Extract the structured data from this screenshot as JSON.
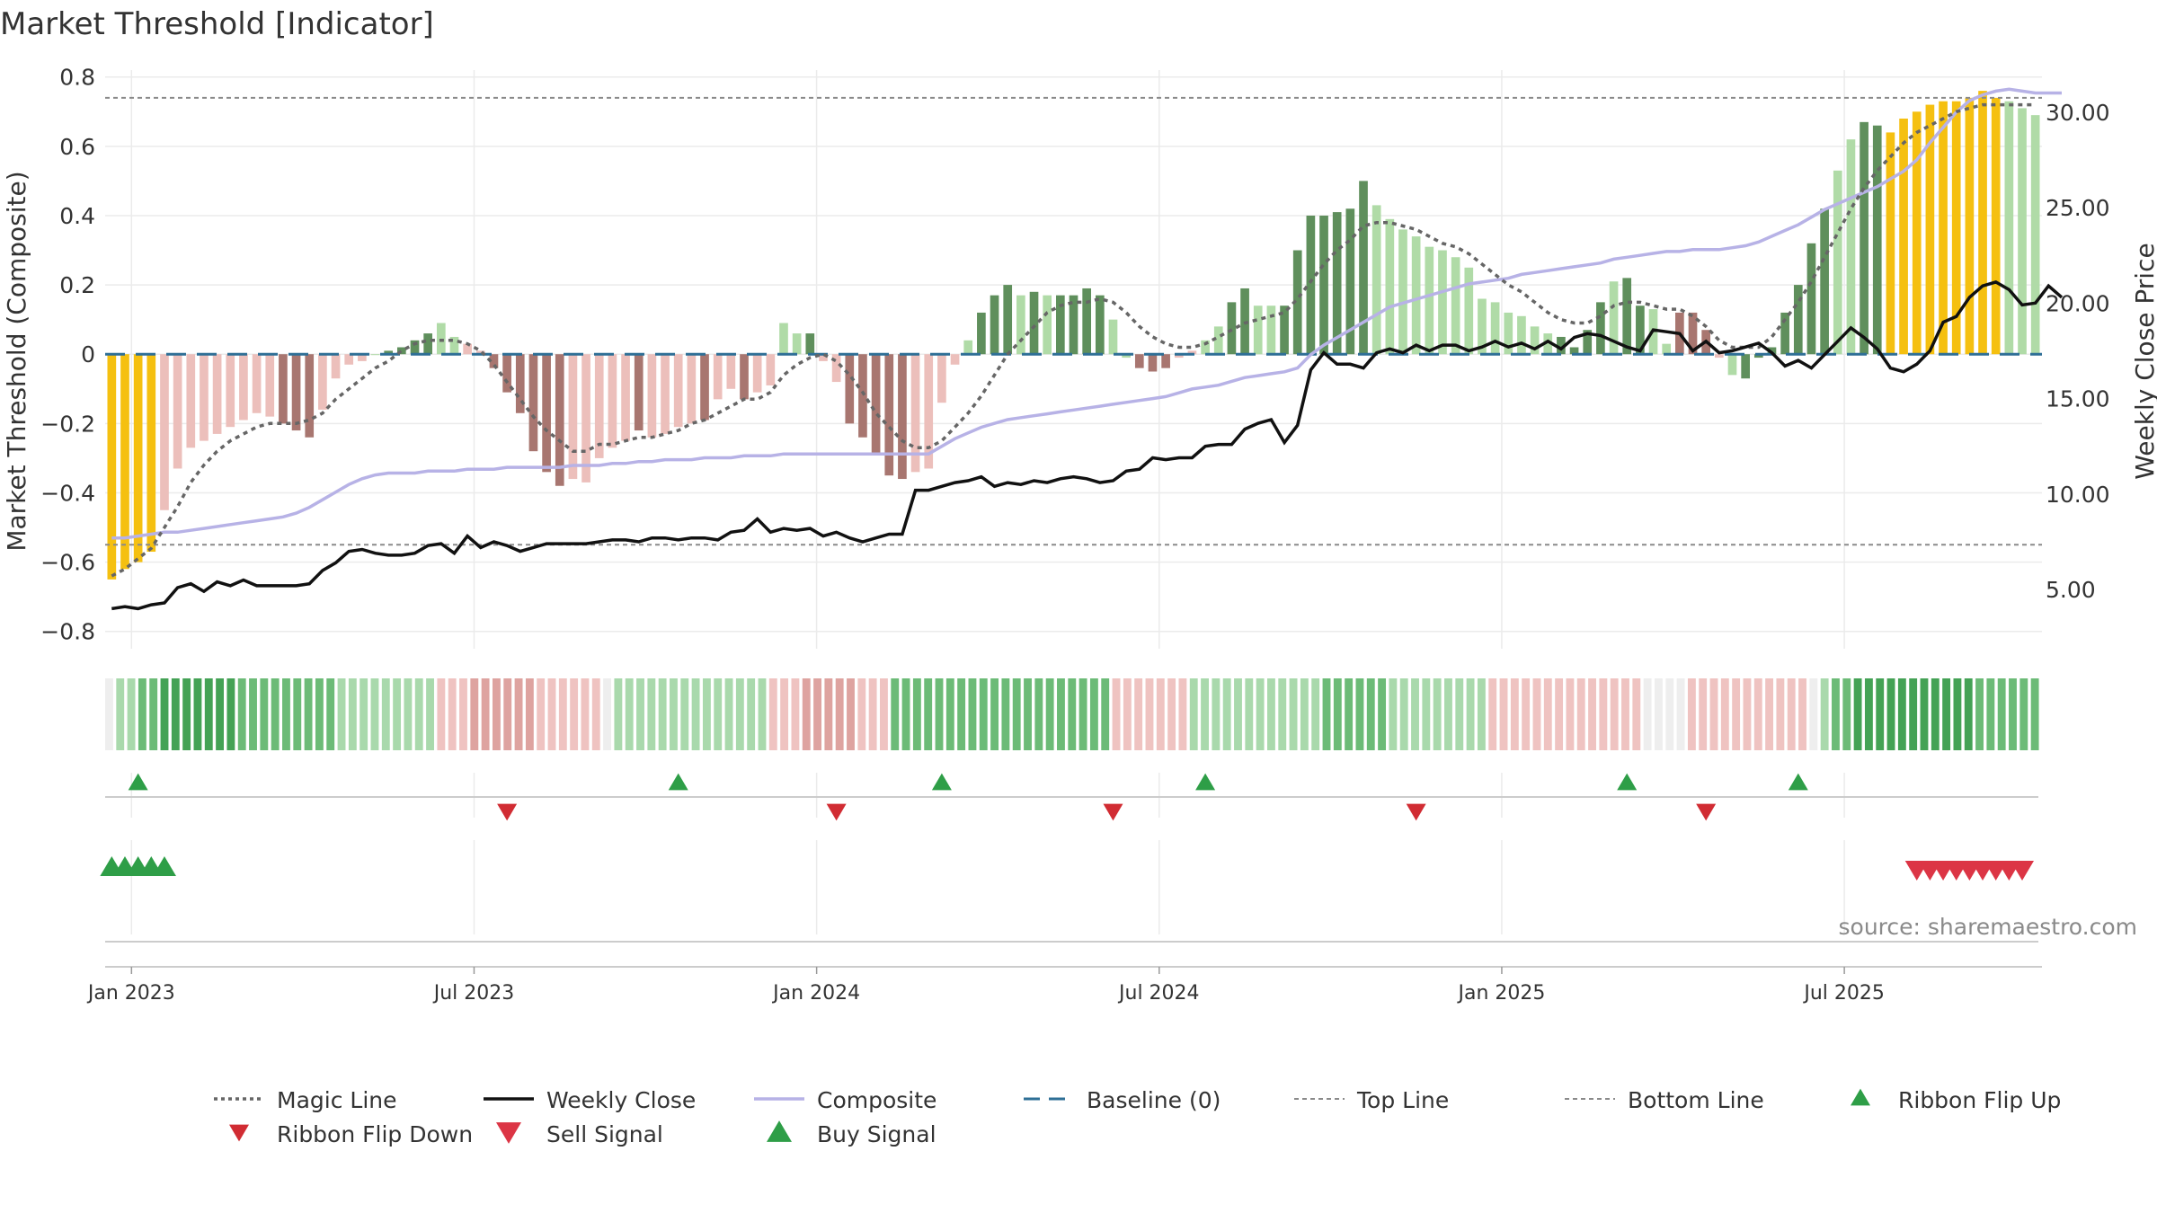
{
  "chart_data": {
    "type": "bar",
    "title": "Market Threshold [Indicator]",
    "source": "source: sharemaestro.com",
    "ylabel_left": "Market Threshold (Composite)",
    "ylabel_right": "Weekly Close Price",
    "ylim_left": [
      -0.85,
      0.82
    ],
    "ylim_right": [
      1.9,
      32.2
    ],
    "yticks_left": [
      {
        "value": 0.8,
        "label": "0.8"
      },
      {
        "value": 0.6,
        "label": "0.6"
      },
      {
        "value": 0.4,
        "label": "0.4"
      },
      {
        "value": 0.2,
        "label": "0.2"
      },
      {
        "value": 0,
        "label": "0"
      },
      {
        "value": -0.2,
        "label": "−0.2"
      },
      {
        "value": -0.4,
        "label": "−0.4"
      },
      {
        "value": -0.6,
        "label": "−0.6"
      },
      {
        "value": -0.8,
        "label": "−0.8"
      }
    ],
    "yticks_right": [
      {
        "value": 30,
        "label": "30.00"
      },
      {
        "value": 25,
        "label": "25.00"
      },
      {
        "value": 20,
        "label": "20.00"
      },
      {
        "value": 15,
        "label": "15.00"
      },
      {
        "value": 10,
        "label": "10.00"
      },
      {
        "value": 5,
        "label": "5.00"
      }
    ],
    "xticks": [
      {
        "week": 1.5,
        "label": "Jan 2023"
      },
      {
        "week": 27.5,
        "label": "Jul 2023"
      },
      {
        "week": 53.5,
        "label": "Jan 2024"
      },
      {
        "week": 79.5,
        "label": "Jul 2024"
      },
      {
        "week": 105.5,
        "label": "Jan 2025"
      },
      {
        "week": 131.5,
        "label": "Jul 2025"
      }
    ],
    "top_line": 0.74,
    "bottom_line": -0.55,
    "composite": [
      -0.65,
      -0.62,
      -0.6,
      -0.57,
      -0.45,
      -0.33,
      -0.27,
      -0.25,
      -0.23,
      -0.21,
      -0.19,
      -0.17,
      -0.18,
      -0.2,
      -0.22,
      -0.24,
      -0.16,
      -0.07,
      -0.03,
      -0.02,
      0,
      0.01,
      0.02,
      0.04,
      0.06,
      0.09,
      0.05,
      0.03,
      0.01,
      -0.04,
      -0.11,
      -0.17,
      -0.28,
      -0.34,
      -0.38,
      -0.36,
      -0.37,
      -0.3,
      -0.27,
      -0.25,
      -0.22,
      -0.24,
      -0.23,
      -0.21,
      -0.2,
      -0.19,
      -0.13,
      -0.1,
      -0.13,
      -0.11,
      -0.09,
      0.09,
      0.06,
      0.06,
      -0.02,
      -0.08,
      -0.2,
      -0.24,
      -0.29,
      -0.35,
      -0.36,
      -0.34,
      -0.33,
      -0.14,
      -0.03,
      0.04,
      0.12,
      0.17,
      0.2,
      0.17,
      0.18,
      0.17,
      0.17,
      0.17,
      0.19,
      0.17,
      0.1,
      -0.01,
      -0.04,
      -0.05,
      -0.04,
      -0.01,
      0.01,
      0.04,
      0.08,
      0.15,
      0.19,
      0.14,
      0.14,
      0.14,
      0.3,
      0.4,
      0.4,
      0.41,
      0.42,
      0.5,
      0.43,
      0.39,
      0.36,
      0.34,
      0.31,
      0.3,
      0.28,
      0.25,
      0.16,
      0.15,
      0.12,
      0.11,
      0.08,
      0.06,
      0.05,
      0.02,
      0.07,
      0.15,
      0.21,
      0.22,
      0.14,
      0.13,
      0.03,
      0.12,
      0.12,
      0.07,
      -0.01,
      -0.06,
      -0.07,
      -0.01,
      0.02,
      0.12,
      0.2,
      0.32,
      0.42,
      0.53,
      0.62,
      0.67,
      0.66,
      0.64,
      0.68,
      0.7,
      0.72,
      0.73,
      0.73,
      0.74,
      0.76,
      0.74,
      0.73,
      0.71,
      0.69
    ],
    "bar_color_states": [
      "y",
      "y",
      "y",
      "y",
      "lr",
      "lr",
      "lr",
      "lr",
      "lr",
      "lr",
      "lr",
      "lr",
      "lr",
      "dr",
      "dr",
      "dr",
      "lr",
      "lr",
      "lr",
      "lr",
      "lg",
      "dg",
      "dg",
      "dg",
      "dg",
      "lg",
      "lg",
      "lr",
      "lr",
      "dr",
      "dr",
      "dr",
      "dr",
      "dr",
      "dr",
      "lr",
      "lr",
      "lr",
      "lr",
      "lr",
      "dr",
      "lr",
      "lr",
      "lr",
      "lr",
      "dr",
      "lr",
      "lr",
      "dr",
      "lr",
      "lr",
      "lg",
      "lg",
      "dg",
      "lr",
      "lr",
      "dr",
      "dr",
      "dr",
      "dr",
      "dr",
      "lr",
      "lr",
      "lr",
      "lr",
      "lg",
      "dg",
      "dg",
      "dg",
      "lg",
      "dg",
      "lg",
      "dg",
      "dg",
      "dg",
      "dg",
      "lg",
      "lg",
      "dr",
      "dr",
      "dr",
      "lr",
      "lr",
      "lg",
      "lg",
      "dg",
      "dg",
      "lg",
      "lg",
      "dg",
      "dg",
      "dg",
      "dg",
      "dg",
      "dg",
      "dg",
      "lg",
      "lg",
      "lg",
      "lg",
      "lg",
      "lg",
      "lg",
      "lg",
      "lg",
      "lg",
      "lg",
      "lg",
      "lg",
      "lg",
      "dg",
      "dg",
      "dg",
      "dg",
      "lg",
      "dg",
      "dg",
      "lg",
      "lg",
      "dr",
      "dr",
      "dr",
      "lr",
      "lg",
      "dg",
      "dg",
      "dg",
      "dg",
      "dg",
      "dg",
      "dg",
      "lg",
      "lg",
      "dg",
      "dg",
      "y",
      "y",
      "y",
      "y",
      "y",
      "y",
      "y",
      "y",
      "y",
      "lg"
    ],
    "magic_line": [
      -0.64,
      -0.62,
      -0.59,
      -0.56,
      -0.5,
      -0.44,
      -0.37,
      -0.32,
      -0.28,
      -0.25,
      -0.23,
      -0.21,
      -0.2,
      -0.2,
      -0.2,
      -0.19,
      -0.17,
      -0.13,
      -0.1,
      -0.07,
      -0.04,
      -0.02,
      0.01,
      0.03,
      0.04,
      0.04,
      0.04,
      0.03,
      0.01,
      -0.03,
      -0.08,
      -0.13,
      -0.18,
      -0.22,
      -0.25,
      -0.28,
      -0.28,
      -0.26,
      -0.26,
      -0.25,
      -0.24,
      -0.24,
      -0.23,
      -0.22,
      -0.2,
      -0.19,
      -0.17,
      -0.15,
      -0.13,
      -0.13,
      -0.11,
      -0.06,
      -0.03,
      -0.01,
      0,
      -0.02,
      -0.06,
      -0.11,
      -0.17,
      -0.21,
      -0.25,
      -0.27,
      -0.27,
      -0.25,
      -0.21,
      -0.17,
      -0.12,
      -0.06,
      0,
      0.04,
      0.08,
      0.12,
      0.14,
      0.15,
      0.15,
      0.16,
      0.15,
      0.12,
      0.08,
      0.05,
      0.03,
      0.02,
      0.02,
      0.03,
      0.05,
      0.07,
      0.09,
      0.1,
      0.11,
      0.12,
      0.16,
      0.21,
      0.26,
      0.3,
      0.33,
      0.37,
      0.38,
      0.38,
      0.37,
      0.36,
      0.34,
      0.32,
      0.31,
      0.29,
      0.26,
      0.23,
      0.2,
      0.18,
      0.15,
      0.12,
      0.1,
      0.09,
      0.09,
      0.11,
      0.14,
      0.15,
      0.15,
      0.14,
      0.13,
      0.13,
      0.11,
      0.08,
      0.04,
      0.02,
      0.02,
      0.02,
      0.05,
      0.1,
      0.15,
      0.21,
      0.28,
      0.35,
      0.42,
      0.48,
      0.53,
      0.57,
      0.61,
      0.64,
      0.66,
      0.68,
      0.7,
      0.71,
      0.72,
      0.72,
      0.72,
      0.72,
      0.72
    ],
    "weekly_close": [
      4.2,
      4.4,
      4.3,
      4.5,
      4.7,
      5.6,
      6.0,
      5.6,
      6.1,
      5.9,
      6.1,
      5.8,
      5.8,
      5.9,
      5.9,
      6.1,
      7.1,
      7.6,
      8.2,
      8.3,
      8.0,
      7.9,
      8.1,
      8.5,
      8.7,
      8.6,
      8.0,
      8.7,
      8.4,
      8.7,
      8.5,
      8.3,
      8.5,
      8.7,
      8.7,
      8.7,
      8.6,
      8.8,
      9.0,
      9.1,
      9.0,
      9.1,
      9.2,
      9.0,
      9.1,
      9.2,
      9.0,
      9.4,
      9.6,
      10.2,
      9.6,
      9.7,
      9.6,
      9.7,
      9.3,
      9.5,
      9.3,
      9.1,
      9.4,
      9.5,
      9.5,
      11.6,
      11.6,
      11.9,
      12.1,
      12.3,
      12.5,
      12.1,
      12.2,
      12.2,
      12.3,
      12.3,
      12.4,
      12.5,
      12.6,
      12.4,
      12.4,
      12.9,
      13.0,
      13.6,
      13.8,
      14.0,
      13.9,
      14.5,
      14.7,
      14.7,
      15.5,
      15.7,
      15.8,
      16.0,
      16.1,
      16.3,
      16.5,
      16.7,
      17.0,
      17.3,
      17.5,
      17.6,
      17.8,
      18.1,
      18.3,
      18.4,
      18.5,
      18.6,
      18.8,
      19.0,
      19.1,
      19.4,
      19.6,
      19.6,
      19.7,
      19.8,
      19.9,
      20.0,
      20.1,
      20.2,
      20.2,
      20.2,
      20.1,
      20.0,
      20.2,
      20.6,
      20.9,
      21.2,
      21.4,
      21.4,
      21.6,
      22.0,
      22.4,
      22.9,
      23.4,
      23.9,
      24.3,
      24.9,
      25.6,
      26.4,
      27.1,
      28.0,
      28.9,
      29.7,
      30.3,
      30.8,
      31.1,
      31.2,
      31.0,
      30.8
    ],
    "composite_price_line": [
      7.7,
      7.7,
      7.8,
      7.9,
      8.0,
      8.0,
      8.1,
      8.2,
      8.3,
      8.4,
      8.5,
      8.6,
      8.7,
      8.8,
      9.0,
      9.3,
      9.7,
      10.1,
      10.5,
      10.8,
      11.0,
      11.1,
      11.1,
      11.1,
      11.2,
      11.2,
      11.2,
      11.3,
      11.3,
      11.3,
      11.4,
      11.4,
      11.4,
      11.4,
      11.4,
      11.5,
      11.5,
      11.5,
      11.6,
      11.6,
      11.7,
      11.7,
      11.8,
      11.8,
      11.8,
      11.9,
      11.9,
      11.9,
      12.0,
      12.0,
      12.0,
      12.1,
      12.1,
      12.1,
      12.1,
      12.1,
      12.1,
      12.1,
      12.1,
      12.1,
      12.1,
      12.1,
      12.1,
      12.5,
      12.9,
      13.2,
      13.5,
      13.7,
      13.9,
      14.0,
      14.1,
      14.2,
      14.3,
      14.4,
      14.5,
      14.6,
      14.7,
      14.8,
      14.9,
      15.0,
      15.1,
      15.3,
      15.5,
      15.6,
      15.7,
      15.9,
      16.1,
      16.2,
      16.3,
      16.4,
      16.6,
      17.3,
      17.8,
      18.2,
      18.6,
      19.0,
      19.4,
      19.8,
      20.0,
      20.2,
      20.4,
      20.6,
      20.8,
      21.0,
      21.1,
      21.2,
      21.3,
      21.5,
      21.6,
      21.7,
      21.8,
      21.9,
      22.0,
      22.1,
      22.3,
      22.4,
      22.5,
      22.6,
      22.7,
      22.7,
      22.8,
      22.8,
      22.8,
      22.9,
      23.0,
      23.2,
      23.5,
      23.8,
      24.1,
      24.5,
      24.9,
      25.2,
      25.5,
      25.8,
      26.1,
      26.5,
      26.9,
      27.5,
      28.4,
      29.2,
      30.0,
      30.6,
      30.9,
      31.1,
      31.2,
      31.1,
      31.0,
      31.0,
      31.0
    ],
    "price_series": [
      4.0,
      4.1,
      4.0,
      4.2,
      4.3,
      5.1,
      5.3,
      4.9,
      5.4,
      5.2,
      5.5,
      5.2,
      5.2,
      5.2,
      5.2,
      5.3,
      6.0,
      6.4,
      7.0,
      7.1,
      6.9,
      6.8,
      6.8,
      6.9,
      7.3,
      7.4,
      6.9,
      7.8,
      7.2,
      7.5,
      7.3,
      7.0,
      7.2,
      7.4,
      7.4,
      7.4,
      7.4,
      7.5,
      7.6,
      7.6,
      7.5,
      7.7,
      7.7,
      7.6,
      7.7,
      7.7,
      7.6,
      8.0,
      8.1,
      8.7,
      8.0,
      8.2,
      8.1,
      8.2,
      7.8,
      8.0,
      7.7,
      7.5,
      7.7,
      7.9,
      7.9,
      10.2,
      10.2,
      10.4,
      10.6,
      10.7,
      10.9,
      10.4,
      10.6,
      10.5,
      10.7,
      10.6,
      10.8,
      10.9,
      10.8,
      10.6,
      10.7,
      11.2,
      11.3,
      11.9,
      11.8,
      11.9,
      11.9,
      12.5,
      12.6,
      12.6,
      13.4,
      13.7,
      13.9,
      12.7,
      13.6,
      16.5,
      17.4,
      16.8,
      16.8,
      16.6,
      17.4,
      17.6,
      17.4,
      17.8,
      17.5,
      17.8,
      17.8,
      17.5,
      17.7,
      18.0,
      17.7,
      17.9,
      17.6,
      18.0,
      17.6,
      18.2,
      18.4,
      18.3,
      18.0,
      17.7,
      17.5,
      18.6,
      18.5,
      18.4,
      17.5,
      18.0,
      17.4,
      17.5,
      17.7,
      17.9,
      17.4,
      16.7,
      17.0,
      16.6,
      17.3,
      18.0,
      18.7,
      18.2,
      17.6,
      16.6,
      16.4,
      16.8,
      17.5,
      19.0,
      19.3,
      20.3,
      20.9,
      21.1,
      20.7,
      19.9,
      20.0,
      20.9,
      20.3
    ],
    "ribbon_states": [
      0,
      1,
      1,
      2,
      2,
      3,
      3,
      3,
      3,
      3,
      3,
      3,
      2,
      2,
      2,
      2,
      2,
      2,
      2,
      2,
      2,
      1,
      1,
      1,
      1,
      1,
      1,
      1,
      1,
      1,
      -1,
      -1,
      -1,
      -2,
      -2,
      -2,
      -2,
      -2,
      -2,
      -1,
      -1,
      -1,
      -1,
      -1,
      -1,
      0,
      1,
      1,
      1,
      1,
      1,
      1,
      1,
      1,
      1,
      1,
      1,
      1,
      1,
      1,
      -1,
      -1,
      -1,
      -2,
      -2,
      -2,
      -2,
      -2,
      -1,
      -1,
      -1,
      2,
      2,
      2,
      2,
      2,
      2,
      2,
      2,
      2,
      2,
      2,
      2,
      2,
      2,
      2,
      2,
      2,
      2,
      2,
      2,
      -1,
      -1,
      -1,
      -1,
      -1,
      -1,
      -1,
      1,
      1,
      1,
      1,
      1,
      1,
      1,
      1,
      1,
      1,
      1,
      1,
      2,
      2,
      2,
      2,
      2,
      2,
      1,
      1,
      1,
      1,
      1,
      1,
      1,
      1,
      1,
      -1,
      -1,
      -1,
      -1,
      -1,
      -1,
      -1,
      -1,
      -1,
      -1,
      -1,
      -1,
      -1,
      -1,
      0,
      0,
      0,
      0,
      -1,
      -1,
      -1,
      -1,
      -1,
      -1,
      -1,
      -1,
      -1,
      -1,
      -1,
      0,
      1,
      2,
      2,
      3,
      3,
      3,
      3,
      3,
      3,
      3,
      3,
      3,
      3,
      3,
      2,
      2,
      2,
      2,
      2,
      2
    ],
    "ribbon_flip_up": [
      2,
      43,
      63,
      83,
      115,
      128
    ],
    "ribbon_flip_down": [
      30,
      55,
      76,
      99,
      121
    ],
    "buy_signals": [
      0,
      1,
      2,
      3,
      4
    ],
    "sell_signals": [
      137,
      138,
      139,
      140,
      141,
      142,
      143,
      144,
      145
    ],
    "legend": [
      {
        "label": "Magic Line",
        "kind": "dotted",
        "color": "#666666"
      },
      {
        "label": "Weekly Close",
        "kind": "solid",
        "color": "#111111"
      },
      {
        "label": "Composite",
        "kind": "solid",
        "color": "#b7b2e6"
      },
      {
        "label": "Baseline (0)",
        "kind": "dashed",
        "color": "#2e6f96"
      },
      {
        "label": "Top Line",
        "kind": "dotted-thin",
        "color": "#8a8a8a"
      },
      {
        "label": "Bottom Line",
        "kind": "dotted-thin",
        "color": "#8a8a8a"
      },
      {
        "label": "Ribbon Flip Up",
        "kind": "tri-up",
        "color": "#2e9e47"
      },
      {
        "label": "Ribbon Flip Down",
        "kind": "tri-down",
        "color": "#d12c33"
      },
      {
        "label": "Sell Signal",
        "kind": "tri-down-big",
        "color": "#dc3545"
      },
      {
        "label": "Buy Signal",
        "kind": "tri-up-big",
        "color": "#2e9e47"
      }
    ]
  },
  "colors": {
    "yellow": "#f5c010",
    "dark_green": "#5f8f5c",
    "light_green": "#b0dba7",
    "dark_red": "#a87670",
    "light_red": "#ecbfbb",
    "baseline": "#2e6f96",
    "grid": "#ebebeb",
    "title": "#333333",
    "source": "#8a8a8a"
  }
}
